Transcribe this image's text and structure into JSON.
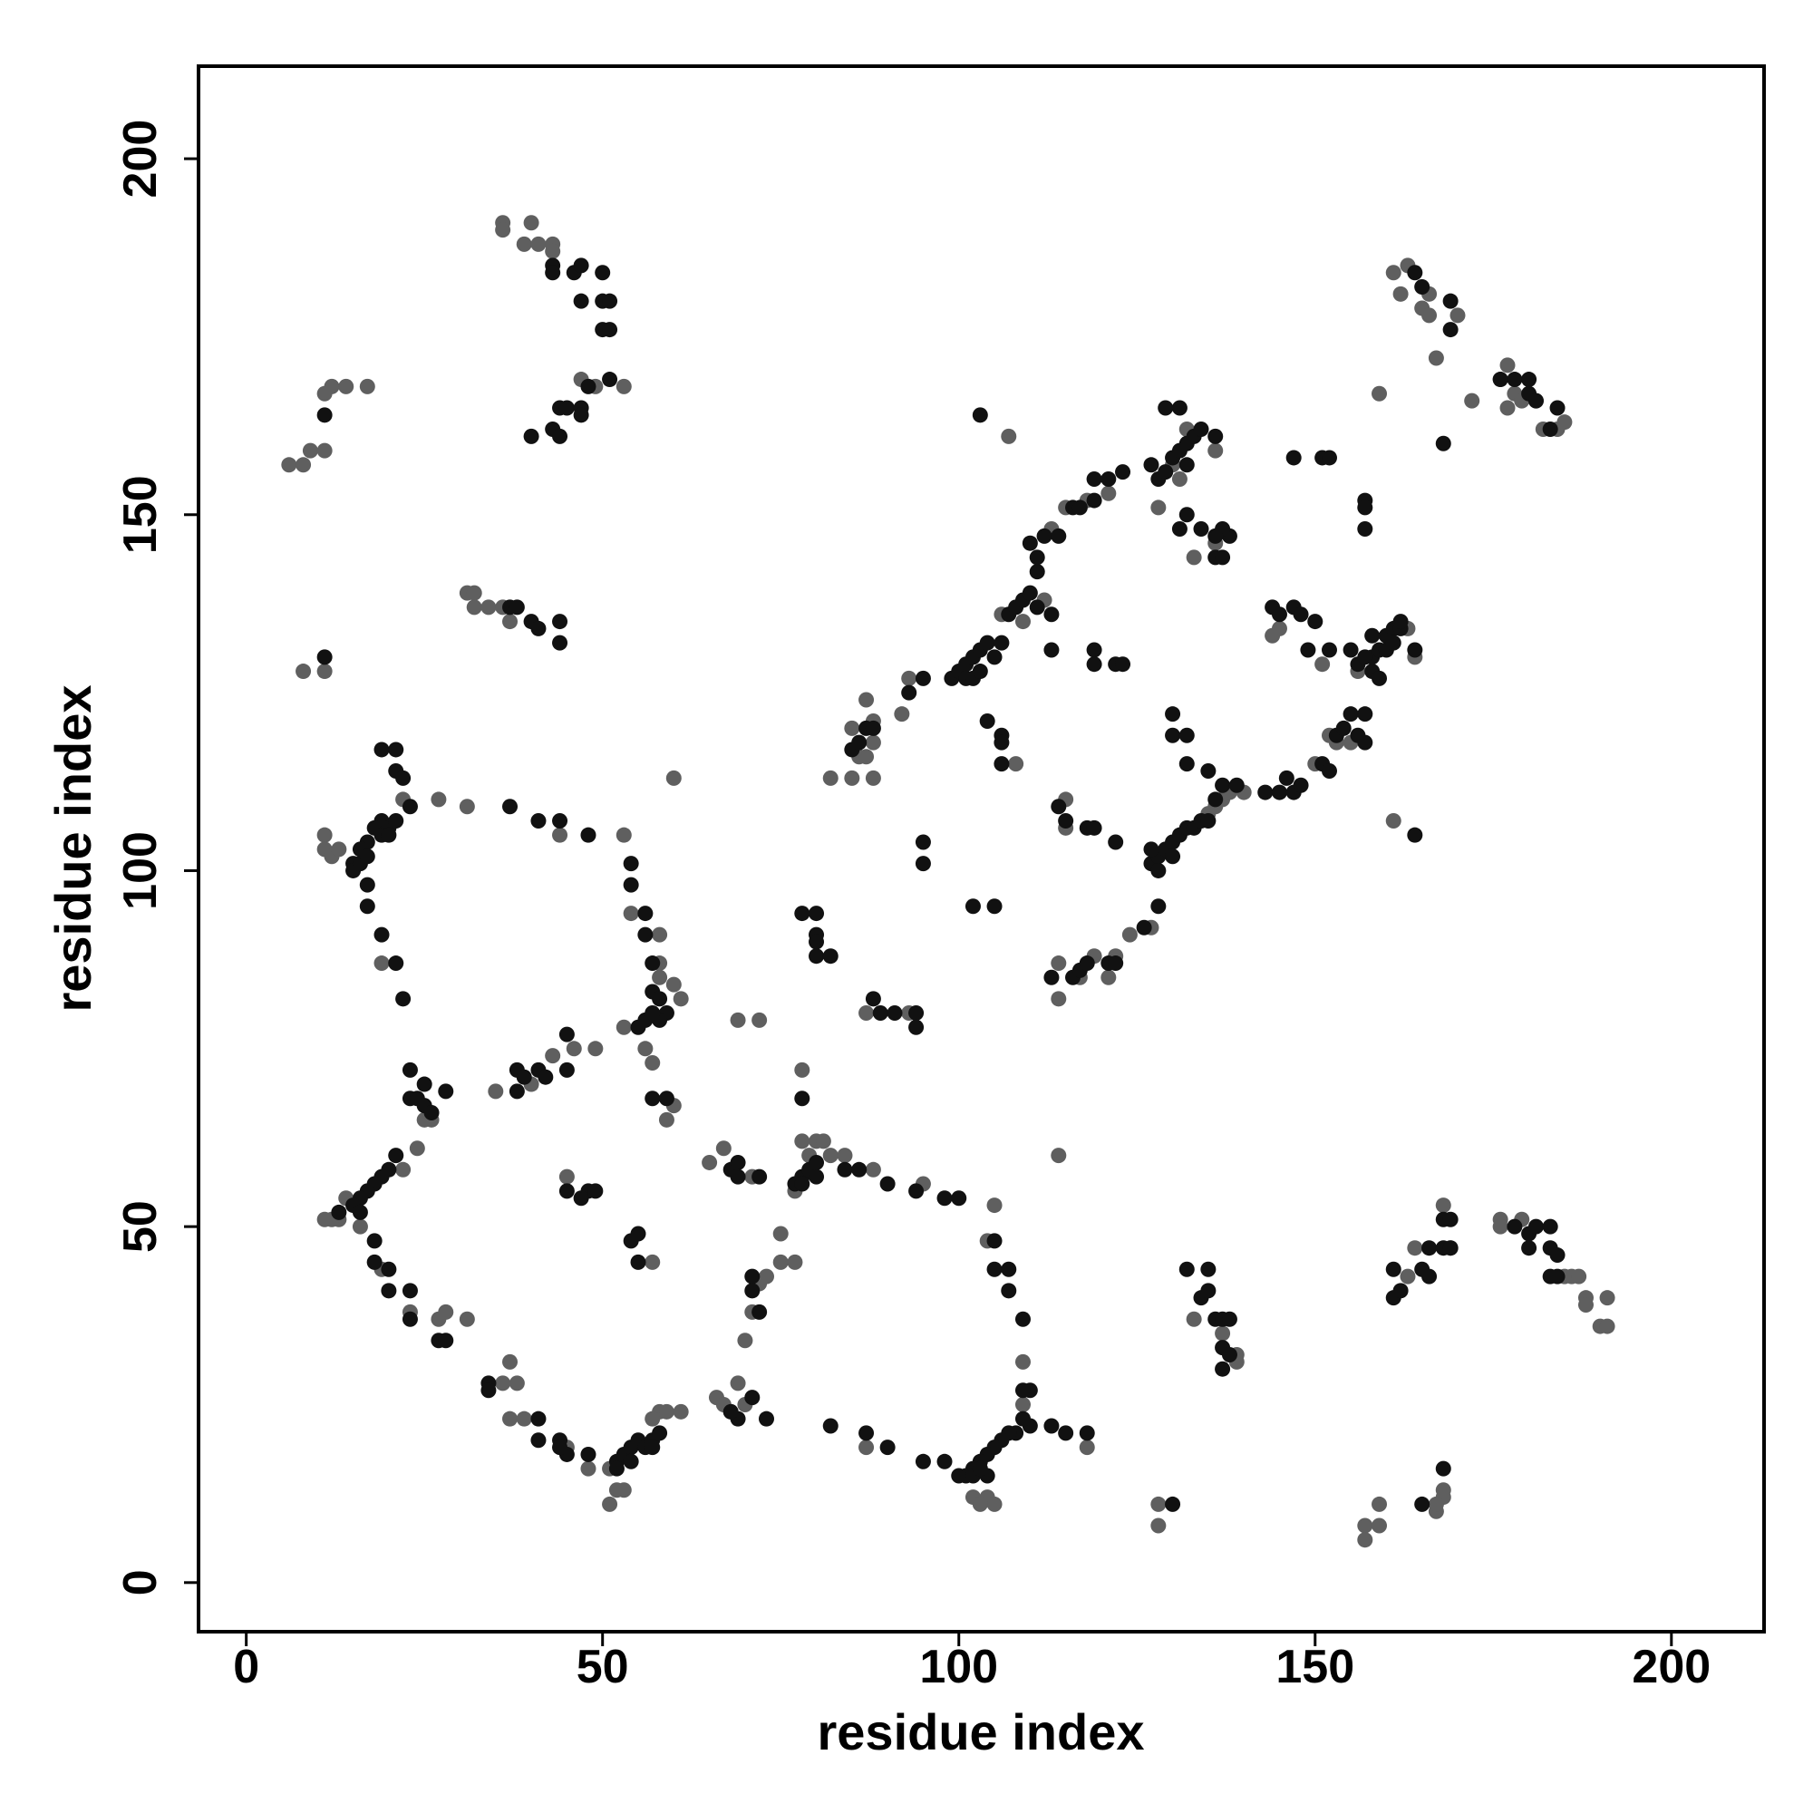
{
  "chart_data": {
    "type": "scatter",
    "xlabel": "residue index",
    "ylabel": "residue index",
    "xlim": [
      -6.7,
      213
    ],
    "ylim": [
      -6.9,
      213
    ],
    "xticks": [
      0,
      50,
      100,
      150,
      200
    ],
    "yticks": [
      0,
      50,
      100,
      150,
      200
    ],
    "series": [
      {
        "color": "#5f5f5f",
        "x": [
          6,
          8,
          9,
          11,
          11,
          12,
          14,
          17,
          8,
          11,
          36,
          36,
          40,
          39,
          41,
          43,
          43,
          47,
          49,
          53,
          31,
          32,
          32,
          34,
          36,
          37,
          11,
          11,
          12,
          19,
          22,
          27,
          31,
          13,
          44,
          53,
          54,
          58,
          58,
          58,
          60,
          61,
          53,
          56,
          57,
          60,
          59,
          26,
          35,
          40,
          43,
          46,
          49,
          25,
          24,
          22,
          13,
          12,
          11,
          14,
          16,
          19,
          23,
          27,
          28,
          31,
          37,
          36,
          38,
          37,
          39,
          45,
          48,
          52,
          51,
          51,
          53,
          58,
          59,
          61,
          57,
          45,
          57,
          69,
          72,
          65,
          67,
          71,
          66,
          68,
          69,
          70,
          71,
          72,
          73,
          75,
          75,
          77,
          67,
          70,
          77,
          78,
          80,
          81,
          82,
          84,
          79,
          88,
          87,
          93,
          95,
          105,
          104,
          109,
          109,
          104,
          105,
          102,
          103,
          87,
          118,
          114,
          78,
          60,
          85,
          88,
          86,
          87,
          88,
          85,
          88,
          87,
          92,
          93,
          82,
          106,
          109,
          113,
          115,
          118,
          121,
          128,
          130,
          131,
          132,
          136,
          112,
          108,
          107,
          133,
          136,
          114,
          114,
          117,
          119,
          121,
          122,
          124,
          127,
          135,
          136,
          137,
          138,
          140,
          150,
          152,
          153,
          155,
          156,
          163,
          164,
          151,
          144,
          145,
          115,
          115,
          161,
          159,
          161,
          163,
          162,
          165,
          166,
          166,
          167,
          170,
          172,
          176,
          177,
          178,
          179,
          181,
          182,
          184,
          185,
          177,
          133,
          137,
          139,
          139,
          163,
          164,
          168,
          169,
          176,
          176,
          179,
          185,
          186,
          187,
          188,
          188,
          191,
          190,
          191,
          168,
          168,
          167,
          167,
          159,
          157,
          157,
          159,
          128,
          128
        ],
        "values": [
          157,
          157,
          159,
          159,
          167,
          168,
          168,
          168,
          128,
          128,
          191,
          190,
          191,
          188,
          188,
          188,
          187,
          169,
          168,
          168,
          139,
          139,
          137,
          137,
          137,
          135,
          105,
          103,
          102,
          87,
          110,
          110,
          109,
          103,
          105,
          105,
          94,
          91,
          85,
          87,
          84,
          82,
          78,
          75,
          73,
          67,
          65,
          65,
          69,
          70,
          74,
          75,
          75,
          65,
          61,
          58,
          51,
          51,
          51,
          54,
          50,
          44,
          38,
          37,
          38,
          37,
          31,
          28,
          28,
          23,
          23,
          19,
          16,
          13,
          11,
          16,
          13,
          24,
          24,
          24,
          23,
          57,
          45,
          79,
          79,
          59,
          61,
          57,
          26,
          24,
          28,
          34,
          38,
          42,
          43,
          45,
          49,
          45,
          25,
          25,
          55,
          62,
          62,
          62,
          60,
          60,
          60,
          58,
          80,
          80,
          56,
          53,
          48,
          31,
          25,
          12,
          11,
          12,
          11,
          19,
          19,
          60,
          72,
          113,
          113,
          113,
          116,
          116,
          118,
          120,
          121,
          124,
          122,
          127,
          113,
          136,
          135,
          148,
          151,
          152,
          153,
          151,
          157,
          155,
          162,
          159,
          138,
          115,
          161,
          144,
          146,
          82,
          87,
          85,
          88,
          85,
          88,
          91,
          92,
          108,
          109,
          110,
          111,
          111,
          115,
          119,
          118,
          118,
          128,
          134,
          130,
          129,
          133,
          134,
          110,
          106,
          107,
          167,
          184,
          185,
          181,
          179,
          181,
          178,
          172,
          178,
          166,
          169,
          171,
          167,
          166,
          166,
          162,
          162,
          163,
          165,
          37,
          35,
          32,
          31,
          43,
          47,
          53,
          47,
          51,
          50,
          51,
          43,
          43,
          43,
          40,
          39,
          40,
          36,
          36,
          13,
          12,
          10,
          11,
          11,
          8,
          6,
          8,
          8,
          11
        ]
      },
      {
        "color": "#111111",
        "x": [
          11,
          11,
          43,
          43,
          46,
          47,
          47,
          50,
          50,
          51,
          50,
          51,
          48,
          51,
          44,
          45,
          43,
          44,
          40,
          47,
          47,
          37,
          40,
          41,
          44,
          44,
          38,
          19,
          21,
          21,
          22,
          23,
          19,
          18,
          17,
          16,
          15,
          15,
          16,
          17,
          19,
          20,
          21,
          20,
          17,
          17,
          19,
          21,
          22,
          37,
          41,
          44,
          48,
          54,
          54,
          56,
          56,
          57,
          57,
          58,
          59,
          58,
          56,
          55,
          57,
          57,
          59,
          23,
          23,
          24,
          25,
          25,
          26,
          28,
          38,
          38,
          41,
          42,
          45,
          45,
          39,
          21,
          20,
          19,
          18,
          17,
          16,
          15,
          16,
          13,
          18,
          18,
          20,
          20,
          23,
          23,
          27,
          28,
          34,
          34,
          41,
          41,
          44,
          45,
          44,
          48,
          52,
          52,
          53,
          54,
          55,
          54,
          56,
          57,
          58,
          57,
          45,
          48,
          49,
          47,
          54,
          55,
          55,
          68,
          69,
          69,
          72,
          71,
          71,
          72,
          71,
          69,
          73,
          68,
          77,
          78,
          79,
          80,
          80,
          78,
          84,
          86,
          88,
          89,
          91,
          94,
          94,
          90,
          94,
          98,
          100,
          105,
          105,
          107,
          107,
          109,
          110,
          109,
          110,
          109,
          108,
          107,
          106,
          105,
          104,
          103,
          102,
          101,
          100,
          102,
          104,
          103,
          113,
          115,
          118,
          95,
          98,
          87,
          82,
          90,
          78,
          80,
          80,
          80,
          80,
          82,
          78,
          85,
          86,
          87,
          88,
          95,
          93,
          99,
          100,
          101,
          102,
          103,
          104,
          105,
          106,
          101,
          102,
          103,
          107,
          108,
          109,
          110,
          111,
          111,
          111,
          112,
          110,
          114,
          116,
          117,
          119,
          121,
          123,
          119,
          127,
          128,
          129,
          130,
          131,
          132,
          133,
          134,
          131,
          129,
          132,
          136,
          104,
          106,
          106,
          106,
          103,
          113,
          113,
          119,
          119,
          122,
          123,
          130,
          130,
          132,
          131,
          132,
          134,
          136,
          137,
          138,
          137,
          136,
          113,
          116,
          117,
          118,
          121,
          122,
          126,
          128,
          127,
          128,
          129,
          130,
          131,
          132,
          127,
          128,
          130,
          133,
          134,
          135,
          136,
          137,
          139,
          135,
          132,
          143,
          145,
          146,
          147,
          148,
          151,
          152,
          153,
          154,
          155,
          156,
          157,
          157,
          158,
          158,
          159,
          160,
          161,
          162,
          160,
          159,
          161,
          162,
          164,
          158,
          156,
          157,
          155,
          144,
          145,
          147,
          148,
          150,
          149,
          152,
          118,
          119,
          122,
          115,
          114,
          95,
          95,
          102,
          105,
          147,
          151,
          152,
          157,
          157,
          157,
          164,
          164,
          165,
          169,
          169,
          176,
          178,
          180,
          180,
          184,
          168,
          181,
          183,
          132,
          135,
          134,
          135,
          136,
          137,
          138,
          137,
          138,
          137,
          161,
          161,
          162,
          165,
          166,
          166,
          168,
          169,
          168,
          169,
          178,
          180,
          181,
          180,
          183,
          183,
          184,
          183,
          184,
          168,
          165,
          130
        ],
        "values": [
          164,
          130,
          185,
          184,
          184,
          185,
          180,
          184,
          180,
          180,
          176,
          176,
          168,
          169,
          165,
          165,
          162,
          161,
          161,
          165,
          164,
          137,
          135,
          134,
          135,
          132,
          137,
          117,
          117,
          114,
          113,
          109,
          107,
          106,
          104,
          103,
          101,
          100,
          101,
          102,
          105,
          106,
          107,
          105,
          98,
          95,
          91,
          87,
          82,
          109,
          107,
          107,
          105,
          101,
          98,
          91,
          94,
          87,
          83,
          82,
          80,
          79,
          79,
          78,
          80,
          68,
          68,
          72,
          68,
          68,
          67,
          70,
          66,
          69,
          69,
          72,
          72,
          71,
          77,
          72,
          71,
          60,
          58,
          57,
          56,
          55,
          54,
          53,
          52,
          52,
          48,
          45,
          44,
          41,
          41,
          37,
          34,
          34,
          28,
          27,
          23,
          20,
          20,
          18,
          19,
          18,
          17,
          16,
          18,
          19,
          20,
          17,
          19,
          20,
          21,
          19,
          55,
          55,
          55,
          54,
          48,
          45,
          49,
          58,
          59,
          57,
          57,
          43,
          41,
          38,
          26,
          23,
          23,
          24,
          56,
          57,
          58,
          57,
          59,
          56,
          58,
          58,
          82,
          80,
          80,
          80,
          78,
          56,
          55,
          54,
          54,
          48,
          44,
          44,
          41,
          37,
          27,
          27,
          22,
          23,
          21,
          21,
          20,
          19,
          18,
          17,
          16,
          15,
          15,
          15,
          15,
          16,
          22,
          21,
          21,
          17,
          17,
          21,
          22,
          19,
          94,
          94,
          91,
          90,
          88,
          88,
          68,
          117,
          118,
          120,
          120,
          127,
          125,
          127,
          128,
          129,
          130,
          131,
          132,
          130,
          132,
          127,
          127,
          128,
          136,
          137,
          138,
          139,
          137,
          142,
          144,
          147,
          146,
          147,
          151,
          151,
          155,
          155,
          156,
          152,
          157,
          155,
          156,
          158,
          159,
          160,
          161,
          162,
          165,
          165,
          157,
          161,
          121,
          119,
          118,
          115,
          164,
          136,
          131,
          131,
          129,
          129,
          129,
          122,
          119,
          119,
          148,
          150,
          148,
          144,
          144,
          147,
          148,
          147,
          85,
          85,
          86,
          87,
          87,
          87,
          92,
          95,
          101,
          102,
          103,
          104,
          105,
          106,
          103,
          100,
          102,
          106,
          107,
          107,
          110,
          112,
          112,
          114,
          115,
          111,
          111,
          113,
          111,
          112,
          115,
          114,
          119,
          120,
          122,
          119,
          122,
          118,
          128,
          130,
          131,
          133,
          134,
          134,
          131,
          127,
          132,
          135,
          131,
          133,
          129,
          130,
          131,
          137,
          136,
          137,
          136,
          135,
          131,
          131,
          106,
          106,
          104,
          107,
          109,
          104,
          101,
          95,
          95,
          158,
          158,
          158,
          152,
          151,
          148,
          105,
          184,
          182,
          176,
          180,
          169,
          169,
          169,
          167,
          165,
          160,
          166,
          162,
          44,
          44,
          40,
          41,
          37,
          37,
          37,
          33,
          32,
          30,
          44,
          40,
          41,
          44,
          43,
          47,
          51,
          51,
          47,
          47,
          50,
          49,
          50,
          47,
          50,
          47,
          46,
          43,
          43,
          16,
          11,
          11
        ]
      }
    ]
  }
}
